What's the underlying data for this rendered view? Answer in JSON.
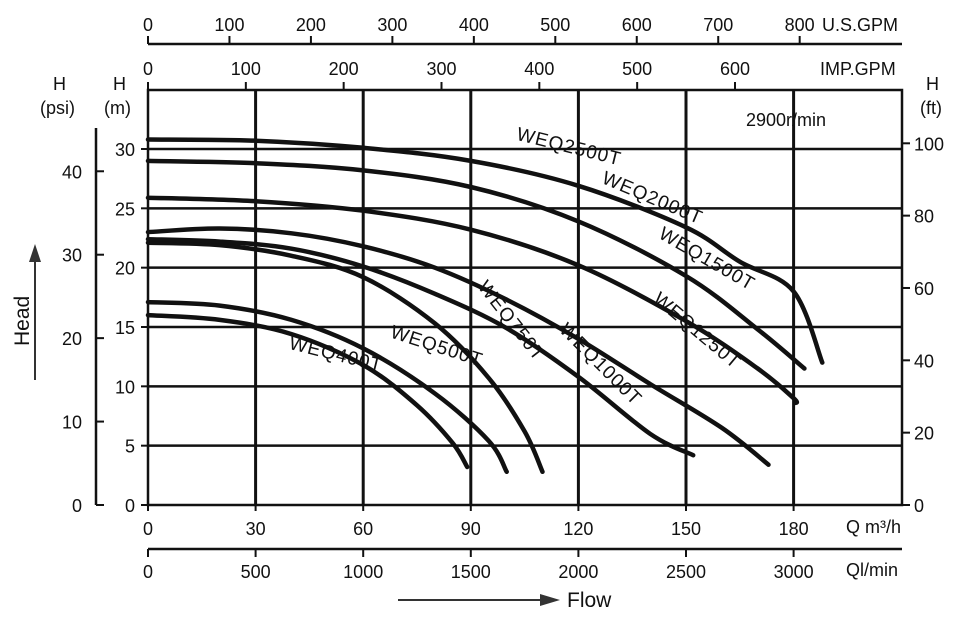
{
  "chart_data": {
    "type": "line",
    "title": "",
    "speed": "2900r/min",
    "x_axis": {
      "unit_label": "Q m³/h",
      "lim": [
        0,
        180
      ],
      "ticks": [
        "0",
        "30",
        "60",
        "90",
        "120",
        "150",
        "180"
      ]
    },
    "x_axis_liters": {
      "unit_label": "Ql/min",
      "ticks": [
        "0",
        "500",
        "1000",
        "1500",
        "2000",
        "2500",
        "3000"
      ]
    },
    "x_axis_usgpm": {
      "unit_label": "U.S.GPM",
      "ticks": [
        "0",
        "100",
        "200",
        "300",
        "400",
        "500",
        "600",
        "700",
        "800"
      ]
    },
    "x_axis_impgpm": {
      "unit_label": "IMP.GPM",
      "ticks": [
        "0",
        "100",
        "200",
        "300",
        "400",
        "500",
        "600"
      ]
    },
    "y_axis_m": {
      "header": [
        "H",
        "(m)"
      ],
      "lim": [
        0,
        31
      ],
      "ticks": [
        "0",
        "5",
        "10",
        "15",
        "20",
        "25",
        "30"
      ]
    },
    "y_axis_psi": {
      "header": [
        "H",
        "(psi)"
      ],
      "ticks": [
        "0",
        "10",
        "20",
        "30",
        "40"
      ]
    },
    "y_axis_ft": {
      "header": [
        "H",
        "(ft)"
      ],
      "ticks": [
        "0",
        "20",
        "40",
        "60",
        "80",
        "100"
      ]
    },
    "ylabel": "Head",
    "xlabel": "Flow",
    "series": [
      {
        "name": "WEQ400T",
        "points": [
          [
            0,
            16.0
          ],
          [
            20,
            15.6
          ],
          [
            40,
            14.4
          ],
          [
            60,
            11.8
          ],
          [
            75,
            8.4
          ],
          [
            85,
            5.2
          ],
          [
            89,
            3.2
          ]
        ]
      },
      {
        "name": "WEQ500T",
        "points": [
          [
            0,
            17.1
          ],
          [
            20,
            16.8
          ],
          [
            40,
            15.6
          ],
          [
            60,
            13.2
          ],
          [
            80,
            9.4
          ],
          [
            95,
            5.4
          ],
          [
            100,
            2.8
          ]
        ]
      },
      {
        "name": "WEQ750T",
        "points": [
          [
            0,
            22.1
          ],
          [
            20,
            21.9
          ],
          [
            40,
            21.0
          ],
          [
            60,
            19.2
          ],
          [
            80,
            15.3
          ],
          [
            95,
            10.7
          ],
          [
            105,
            6.2
          ],
          [
            110,
            2.8
          ]
        ]
      },
      {
        "name": "WEQ1000T",
        "points": [
          [
            0,
            22.4
          ],
          [
            20,
            22.2
          ],
          [
            40,
            21.6
          ],
          [
            60,
            20.1
          ],
          [
            80,
            17.8
          ],
          [
            100,
            14.9
          ],
          [
            120,
            10.8
          ],
          [
            140,
            6.0
          ],
          [
            152,
            4.2
          ]
        ]
      },
      {
        "name": "WEQ1250T",
        "points": [
          [
            0,
            23.0
          ],
          [
            20,
            23.3
          ],
          [
            40,
            22.9
          ],
          [
            60,
            21.8
          ],
          [
            80,
            20.0
          ],
          [
            100,
            17.3
          ],
          [
            120,
            14.0
          ],
          [
            140,
            10.2
          ],
          [
            160,
            6.5
          ],
          [
            173,
            3.4
          ]
        ]
      },
      {
        "name": "WEQ1500T",
        "points": [
          [
            0,
            25.9
          ],
          [
            30,
            25.6
          ],
          [
            60,
            24.8
          ],
          [
            90,
            23.2
          ],
          [
            120,
            20.2
          ],
          [
            150,
            15.5
          ],
          [
            170,
            11.5
          ],
          [
            180,
            9.0
          ],
          [
            180.5,
            8.6
          ]
        ]
      },
      {
        "name": "WEQ2000T",
        "points": [
          [
            0,
            29.0
          ],
          [
            30,
            28.8
          ],
          [
            60,
            28.2
          ],
          [
            90,
            26.8
          ],
          [
            120,
            23.9
          ],
          [
            150,
            19.3
          ],
          [
            170,
            14.8
          ],
          [
            183,
            11.5
          ]
        ]
      },
      {
        "name": "WEQ2500T",
        "points": [
          [
            0,
            30.8
          ],
          [
            30,
            30.7
          ],
          [
            60,
            30.1
          ],
          [
            90,
            29.0
          ],
          [
            120,
            26.9
          ],
          [
            150,
            23.4
          ],
          [
            165,
            20.5
          ],
          [
            180,
            18.0
          ],
          [
            188,
            12.0
          ]
        ]
      }
    ],
    "grid": true,
    "legend": "inline"
  }
}
